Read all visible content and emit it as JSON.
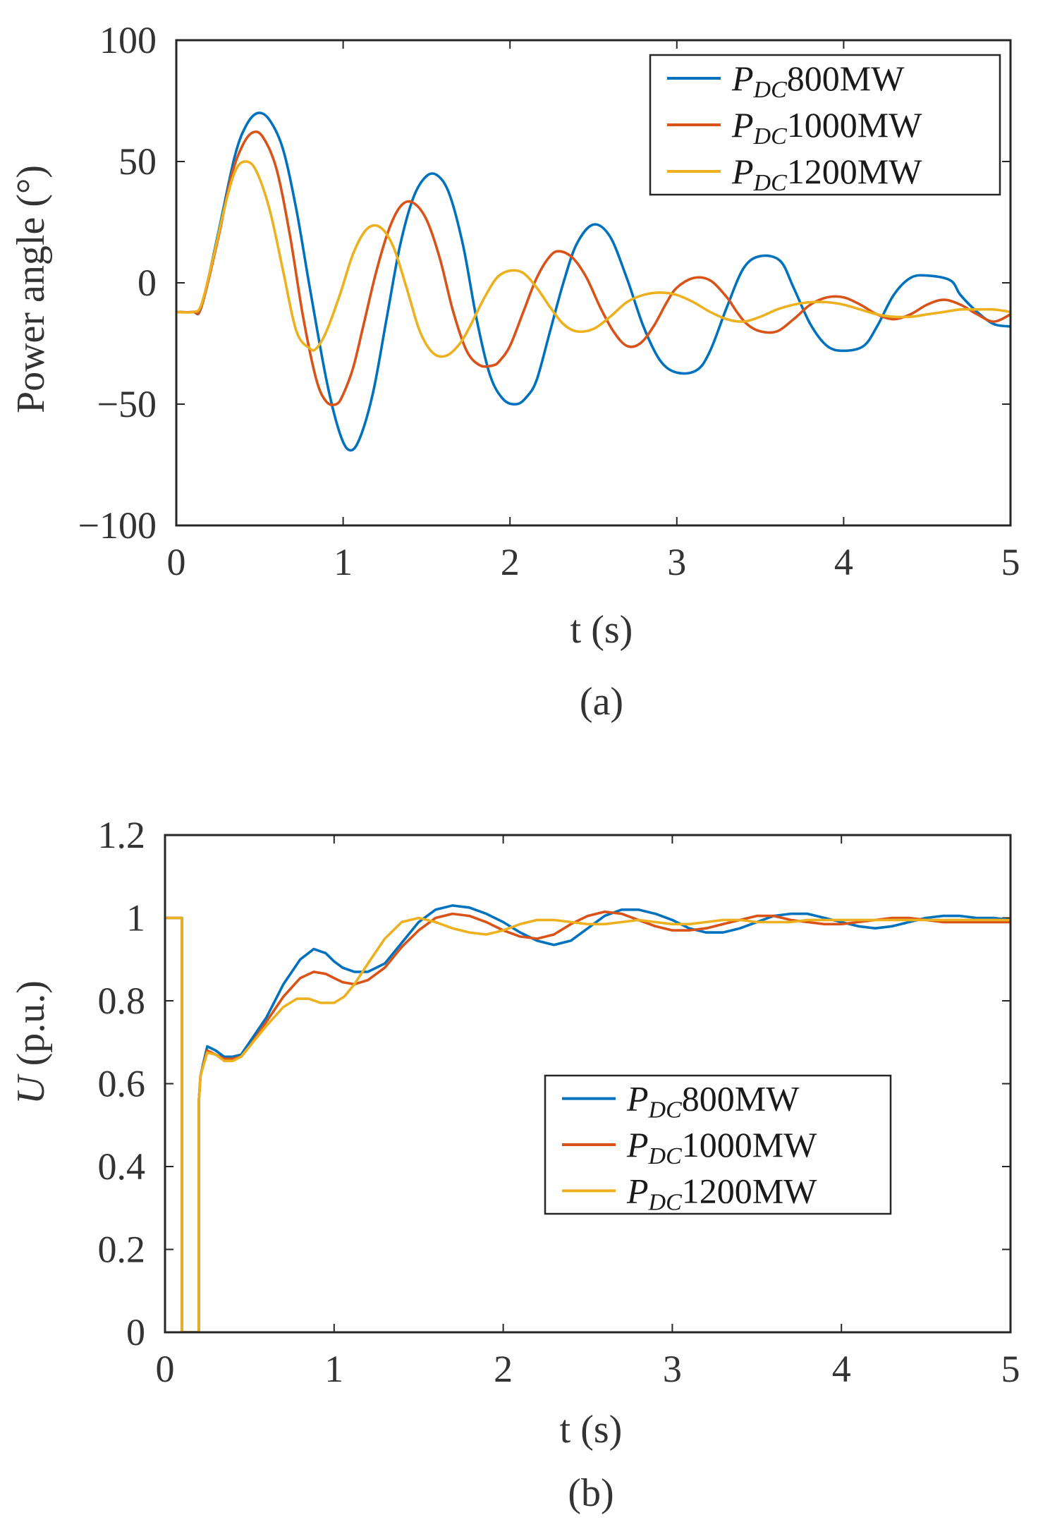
{
  "chart_data": [
    {
      "type": "line",
      "caption": "(a)",
      "xlabel": "t (s)",
      "ylabel": "Power angle (°)",
      "xlim": [
        0,
        5
      ],
      "ylim": [
        -100,
        100
      ],
      "xticks": [
        0,
        1,
        2,
        3,
        4,
        5
      ],
      "yticks": [
        100,
        50,
        0,
        -50,
        -100
      ],
      "xtick_labels": [
        "0",
        "1",
        "2",
        "3",
        "4",
        "5"
      ],
      "ytick_labels": [
        "100",
        "50",
        "0",
        "−50",
        "−100"
      ],
      "legend_position": "top-right",
      "series": [
        {
          "name": "PDC800MW",
          "name_parts": [
            "P",
            "DC",
            "800MW"
          ],
          "color": "#0072BD",
          "x": [
            0,
            0.1,
            0.15,
            0.25,
            0.35,
            0.42,
            0.49,
            0.56,
            0.64,
            0.72,
            0.8,
            0.9,
            0.98,
            1.04,
            1.1,
            1.18,
            1.26,
            1.34,
            1.42,
            1.5,
            1.57,
            1.64,
            1.72,
            1.8,
            1.88,
            1.96,
            2.04,
            2.1,
            2.16,
            2.24,
            2.32,
            2.4,
            2.5,
            2.6,
            2.7,
            2.8,
            2.9,
            3.0,
            3.12,
            3.2,
            3.3,
            3.4,
            3.5,
            3.62,
            3.7,
            3.8,
            3.9,
            4.0,
            4.12,
            4.2,
            4.3,
            4.4,
            4.5,
            4.64,
            4.7,
            4.8,
            4.9,
            5.0
          ],
          "y": [
            -12,
            -12,
            -10,
            20,
            52,
            65,
            70,
            67,
            55,
            30,
            -2,
            -40,
            -62,
            -69,
            -64,
            -45,
            -15,
            15,
            35,
            44,
            44,
            36,
            15,
            -15,
            -38,
            -48,
            -50,
            -47,
            -40,
            -20,
            0,
            16,
            24,
            19,
            2,
            -18,
            -32,
            -37,
            -36,
            -28,
            -10,
            6,
            11,
            9,
            -2,
            -17,
            -26,
            -28,
            -26,
            -18,
            -5,
            2,
            3,
            1,
            -5,
            -12,
            -17,
            -18
          ]
        },
        {
          "name": "PDC1000MW",
          "name_parts": [
            "P",
            "DC",
            "1000MW"
          ],
          "color": "#D95319",
          "x": [
            0,
            0.1,
            0.15,
            0.25,
            0.33,
            0.4,
            0.46,
            0.52,
            0.6,
            0.68,
            0.76,
            0.84,
            0.9,
            0.96,
            1.0,
            1.06,
            1.12,
            1.2,
            1.28,
            1.35,
            1.42,
            1.5,
            1.58,
            1.66,
            1.74,
            1.82,
            1.9,
            1.94,
            2.0,
            2.08,
            2.16,
            2.24,
            2.3,
            2.38,
            2.46,
            2.54,
            2.62,
            2.7,
            2.78,
            2.86,
            2.94,
            3.0,
            3.1,
            3.2,
            3.3,
            3.36,
            3.42,
            3.5,
            3.6,
            3.7,
            3.8,
            3.9,
            4.0,
            4.1,
            4.2,
            4.3,
            4.4,
            4.5,
            4.6,
            4.7,
            4.8,
            4.9,
            5.0
          ],
          "y": [
            -12,
            -12,
            -10,
            18,
            44,
            57,
            62,
            60,
            47,
            20,
            -14,
            -40,
            -49,
            -50,
            -46,
            -35,
            -18,
            5,
            23,
            32,
            33,
            26,
            10,
            -12,
            -28,
            -34,
            -34,
            -32,
            -26,
            -12,
            2,
            11,
            13,
            10,
            2,
            -10,
            -20,
            -26,
            -25,
            -18,
            -8,
            -2,
            2,
            1,
            -6,
            -12,
            -17,
            -20,
            -20,
            -15,
            -9,
            -6,
            -6,
            -9,
            -13,
            -15,
            -13,
            -9,
            -7,
            -9,
            -13,
            -16,
            -13
          ]
        },
        {
          "name": "PDC1200MW",
          "name_parts": [
            "P",
            "DC",
            "1200MW"
          ],
          "color": "#EDB120",
          "x": [
            0,
            0.1,
            0.15,
            0.22,
            0.3,
            0.36,
            0.42,
            0.48,
            0.56,
            0.64,
            0.72,
            0.8,
            0.84,
            0.9,
            0.98,
            1.06,
            1.14,
            1.22,
            1.3,
            1.38,
            1.46,
            1.54,
            1.62,
            1.7,
            1.76,
            1.84,
            1.92,
            2.0,
            2.08,
            2.16,
            2.24,
            2.32,
            2.4,
            2.5,
            2.6,
            2.7,
            2.8,
            2.9,
            3.0,
            3.1,
            3.2,
            3.3,
            3.4,
            3.5,
            3.6,
            3.7,
            3.8,
            3.9,
            4.0,
            4.1,
            4.2,
            4.3,
            4.4,
            4.5,
            4.6,
            4.7,
            4.8,
            4.9,
            5.0
          ],
          "y": [
            -12,
            -12,
            -9,
            10,
            34,
            47,
            50,
            46,
            30,
            5,
            -20,
            -27,
            -27,
            -20,
            -5,
            12,
            22,
            23,
            15,
            -2,
            -20,
            -29,
            -30,
            -25,
            -18,
            -7,
            2,
            5,
            4,
            -2,
            -10,
            -17,
            -20,
            -19,
            -14,
            -8,
            -5,
            -4,
            -5,
            -8,
            -12,
            -15,
            -16,
            -14,
            -11,
            -9,
            -8,
            -8,
            -9,
            -11,
            -13,
            -14,
            -14,
            -13,
            -12,
            -11,
            -11,
            -11,
            -12
          ]
        }
      ]
    },
    {
      "type": "line",
      "caption": "(b)",
      "xlabel": "t (s)",
      "ylabel": "U (p.u.)",
      "ylabel_parts": [
        "U",
        " (p.u.)"
      ],
      "xlim": [
        0,
        5
      ],
      "ylim": [
        0,
        1.2
      ],
      "xticks": [
        0,
        1,
        2,
        3,
        4,
        5
      ],
      "yticks": [
        1.2,
        1,
        0.8,
        0.6,
        0.4,
        0.2,
        0
      ],
      "xtick_labels": [
        "0",
        "1",
        "2",
        "3",
        "4",
        "5"
      ],
      "ytick_labels": [
        "1.2",
        "1",
        "0.8",
        "0.6",
        "0.4",
        "0.2",
        "0"
      ],
      "legend_position": "center-right",
      "series": [
        {
          "name": "PDC800MW",
          "name_parts": [
            "P",
            "DC",
            "800MW"
          ],
          "color": "#0072BD",
          "x": [
            0,
            0.1,
            0.1,
            0.2,
            0.2,
            0.21,
            0.25,
            0.3,
            0.35,
            0.4,
            0.45,
            0.5,
            0.6,
            0.7,
            0.8,
            0.88,
            0.95,
            1.0,
            1.05,
            1.12,
            1.2,
            1.3,
            1.4,
            1.5,
            1.6,
            1.7,
            1.8,
            1.9,
            2.0,
            2.1,
            2.2,
            2.3,
            2.4,
            2.5,
            2.6,
            2.7,
            2.8,
            2.9,
            3.0,
            3.1,
            3.2,
            3.3,
            3.4,
            3.5,
            3.6,
            3.7,
            3.8,
            3.9,
            4.0,
            4.1,
            4.2,
            4.3,
            4.4,
            4.5,
            4.6,
            4.7,
            4.8,
            4.9,
            5.0
          ],
          "y": [
            1,
            1,
            0,
            0,
            0.56,
            0.62,
            0.69,
            0.68,
            0.665,
            0.665,
            0.67,
            0.7,
            0.76,
            0.84,
            0.9,
            0.925,
            0.915,
            0.895,
            0.88,
            0.87,
            0.87,
            0.89,
            0.94,
            0.99,
            1.02,
            1.03,
            1.025,
            1.01,
            0.99,
            0.965,
            0.945,
            0.935,
            0.945,
            0.975,
            1.005,
            1.02,
            1.02,
            1.01,
            0.995,
            0.975,
            0.965,
            0.965,
            0.975,
            0.99,
            1.005,
            1.01,
            1.01,
            1.0,
            0.99,
            0.98,
            0.975,
            0.98,
            0.99,
            1.0,
            1.005,
            1.005,
            1.0,
            1.0,
            0.995
          ]
        },
        {
          "name": "PDC1000MW",
          "name_parts": [
            "P",
            "DC",
            "1000MW"
          ],
          "color": "#D95319",
          "x": [
            0,
            0.1,
            0.1,
            0.2,
            0.2,
            0.21,
            0.25,
            0.3,
            0.35,
            0.4,
            0.45,
            0.5,
            0.6,
            0.7,
            0.8,
            0.88,
            0.95,
            1.0,
            1.05,
            1.12,
            1.2,
            1.3,
            1.4,
            1.5,
            1.6,
            1.7,
            1.8,
            1.9,
            2.0,
            2.1,
            2.2,
            2.3,
            2.4,
            2.5,
            2.6,
            2.7,
            2.8,
            2.9,
            3.0,
            3.1,
            3.2,
            3.3,
            3.4,
            3.5,
            3.6,
            3.7,
            3.8,
            3.9,
            4.0,
            4.1,
            4.2,
            4.3,
            4.4,
            4.5,
            4.6,
            4.7,
            4.8,
            4.9,
            5.0
          ],
          "y": [
            1,
            1,
            0,
            0,
            0.56,
            0.62,
            0.68,
            0.67,
            0.66,
            0.66,
            0.665,
            0.69,
            0.75,
            0.81,
            0.855,
            0.87,
            0.865,
            0.855,
            0.845,
            0.84,
            0.85,
            0.88,
            0.93,
            0.97,
            1.0,
            1.01,
            1.005,
            0.99,
            0.97,
            0.955,
            0.95,
            0.96,
            0.985,
            1.005,
            1.015,
            1.01,
            0.995,
            0.98,
            0.97,
            0.97,
            0.975,
            0.985,
            0.995,
            1.005,
            1.005,
            0.995,
            0.99,
            0.985,
            0.985,
            0.99,
            0.995,
            1.0,
            1.0,
            0.995,
            0.99,
            0.99,
            0.99,
            0.99,
            0.99
          ]
        },
        {
          "name": "PDC1200MW",
          "name_parts": [
            "P",
            "DC",
            "1200MW"
          ],
          "color": "#EDB120",
          "x": [
            0,
            0.1,
            0.1,
            0.2,
            0.2,
            0.21,
            0.25,
            0.3,
            0.35,
            0.4,
            0.45,
            0.5,
            0.6,
            0.7,
            0.78,
            0.85,
            0.92,
            1.0,
            1.06,
            1.12,
            1.2,
            1.3,
            1.4,
            1.5,
            1.6,
            1.7,
            1.8,
            1.9,
            2.0,
            2.1,
            2.2,
            2.3,
            2.4,
            2.5,
            2.6,
            2.7,
            2.8,
            2.9,
            3.0,
            3.1,
            3.2,
            3.3,
            3.4,
            3.5,
            3.6,
            3.7,
            3.8,
            3.9,
            4.0,
            4.1,
            4.2,
            4.3,
            4.4,
            4.5,
            4.6,
            4.7,
            4.8,
            4.9,
            5.0
          ],
          "y": [
            1,
            1,
            0,
            0,
            0.56,
            0.62,
            0.675,
            0.67,
            0.655,
            0.655,
            0.665,
            0.69,
            0.74,
            0.785,
            0.805,
            0.805,
            0.795,
            0.795,
            0.81,
            0.84,
            0.89,
            0.95,
            0.99,
            1.0,
            0.99,
            0.975,
            0.965,
            0.96,
            0.97,
            0.985,
            0.995,
            0.995,
            0.99,
            0.985,
            0.985,
            0.99,
            0.995,
            0.99,
            0.985,
            0.985,
            0.99,
            0.995,
            0.995,
            0.99,
            0.99,
            0.99,
            0.995,
            0.995,
            0.995,
            0.995,
            0.995,
            0.995,
            0.995,
            0.995,
            0.995,
            0.995,
            0.995,
            0.995,
            0.995
          ]
        }
      ]
    }
  ]
}
